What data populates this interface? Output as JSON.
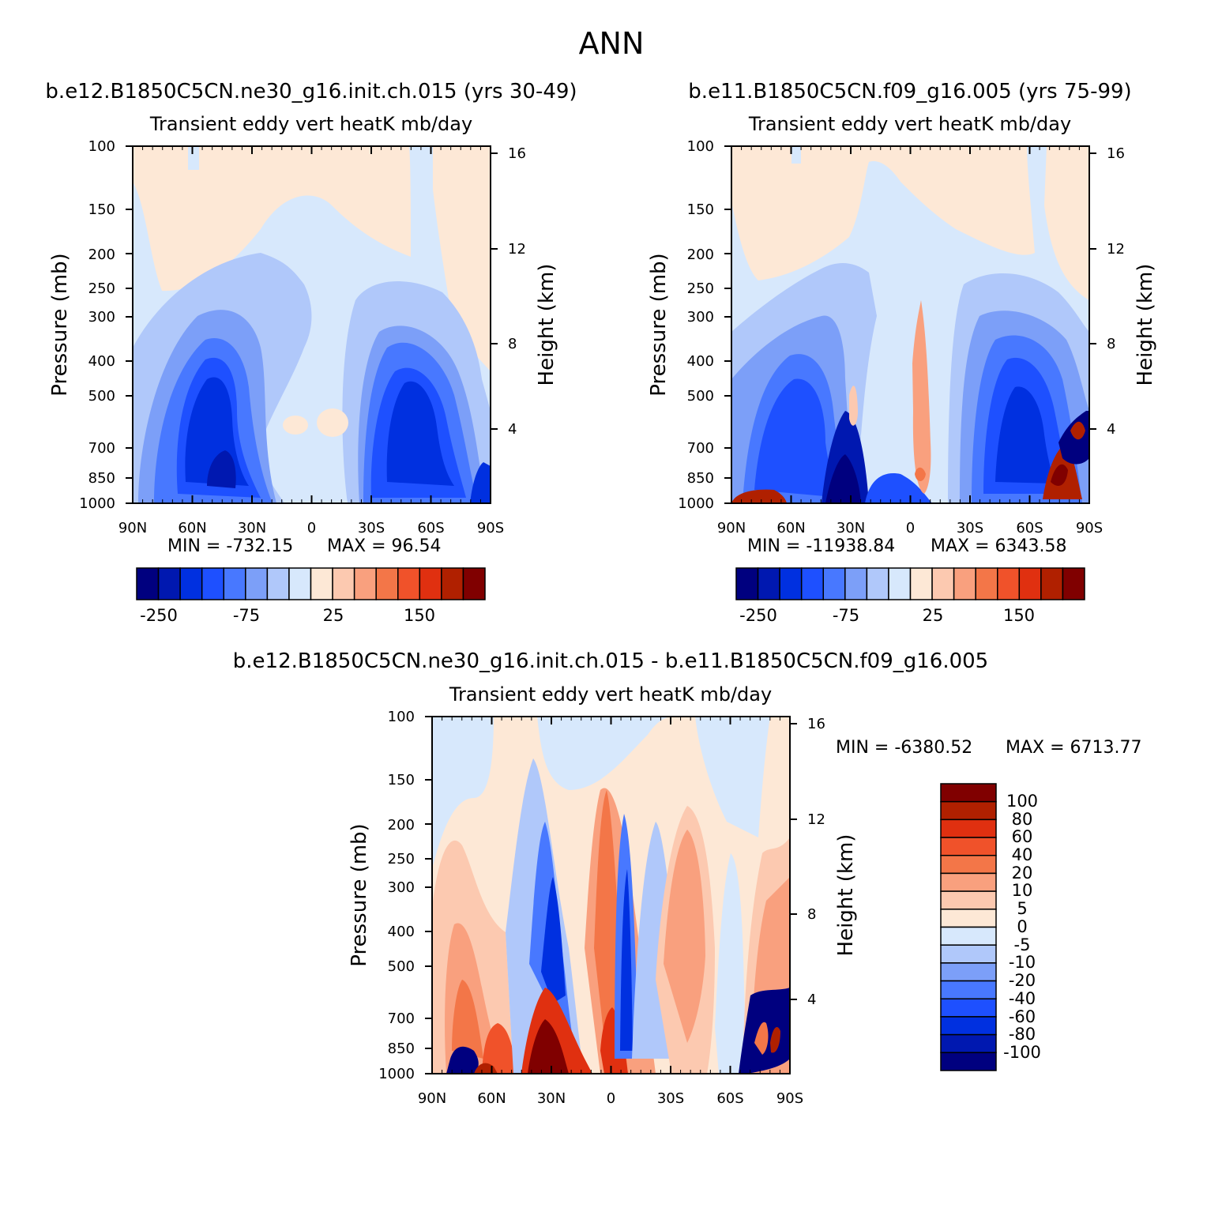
{
  "page_title": "ANN",
  "colors": {
    "upper_scale": [
      "#00007f",
      "#0018b0",
      "#0030e0",
      "#1e50ff",
      "#4878ff",
      "#7c9ff8",
      "#b0c8fa",
      "#d7e8fc",
      "#fde8d6",
      "#fcc9b0",
      "#f9a07e",
      "#f37648",
      "#f0522a",
      "#e03010",
      "#b02000",
      "#800000"
    ],
    "diff_scale": [
      "#00007f",
      "#0018b0",
      "#0030e0",
      "#1e50ff",
      "#4878ff",
      "#7c9ff8",
      "#b0c8fa",
      "#d7e8fc",
      "#fde8d6",
      "#fcc9b0",
      "#f9a07e",
      "#f37648",
      "#f0522a",
      "#e03010",
      "#b02000",
      "#800000"
    ]
  },
  "chart_data": [
    {
      "type": "heatmap",
      "panel": "top-left",
      "case_title": "b.e12.B1850C5CN.ne30_g16.init.ch.015 (yrs 30-49)",
      "title": "Transient eddy vert heatK mb/day",
      "ylabel": "Pressure (mb)",
      "y2label": "Height (km)",
      "x_ticks": [
        "90N",
        "60N",
        "30N",
        "0",
        "30S",
        "60S",
        "90S"
      ],
      "y_ticks": [
        "100",
        "150",
        "200",
        "250",
        "300",
        "400",
        "500",
        "700",
        "850",
        "1000"
      ],
      "y2_ticks": [
        "16",
        "12",
        "8",
        "4"
      ],
      "min_label": "MIN = -732.15",
      "max_label": "MAX = 96.54",
      "colorbar_labels": [
        "-250",
        "-75",
        "25",
        "150"
      ]
    },
    {
      "type": "heatmap",
      "panel": "top-right",
      "case_title": "b.e11.B1850C5CN.f09_g16.005 (yrs 75-99)",
      "title": "Transient eddy vert heatK mb/day",
      "ylabel": "Pressure (mb)",
      "y2label": "Height (km)",
      "x_ticks": [
        "90N",
        "60N",
        "30N",
        "0",
        "30S",
        "60S",
        "90S"
      ],
      "y_ticks": [
        "100",
        "150",
        "200",
        "250",
        "300",
        "400",
        "500",
        "700",
        "850",
        "1000"
      ],
      "y2_ticks": [
        "16",
        "12",
        "8",
        "4"
      ],
      "min_label": "MIN = -11938.84",
      "max_label": "MAX = 6343.58",
      "colorbar_labels": [
        "-250",
        "-75",
        "25",
        "150"
      ]
    },
    {
      "type": "heatmap",
      "panel": "bottom",
      "case_title": "b.e12.B1850C5CN.ne30_g16.init.ch.015 - b.e11.B1850C5CN.f09_g16.005",
      "title": "Transient eddy vert heatK mb/day",
      "ylabel": "Pressure (mb)",
      "y2label": "Height (km)",
      "x_ticks": [
        "90N",
        "60N",
        "30N",
        "0",
        "30S",
        "60S",
        "90S"
      ],
      "y_ticks": [
        "100",
        "150",
        "200",
        "250",
        "300",
        "400",
        "500",
        "700",
        "850",
        "1000"
      ],
      "y2_ticks": [
        "16",
        "12",
        "8",
        "4"
      ],
      "min_label": "MIN = -6380.52",
      "max_label": "MAX = 6713.77",
      "colorbar_labels": [
        "100",
        "80",
        "60",
        "40",
        "20",
        "10",
        "5",
        "0",
        "-5",
        "-10",
        "-20",
        "-40",
        "-60",
        "-80",
        "-100"
      ]
    }
  ]
}
